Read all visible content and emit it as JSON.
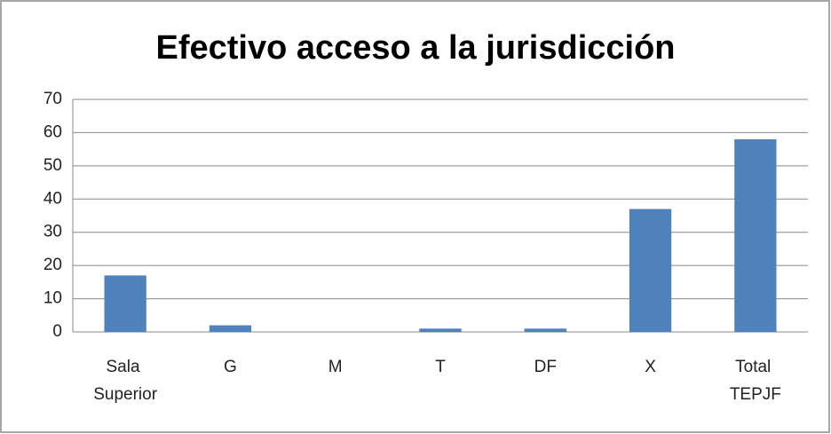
{
  "chart_data": {
    "type": "bar",
    "title": "Efectivo acceso a la jurisdicción",
    "categories": [
      "Sala Superior",
      "G",
      "M",
      "T",
      "DF",
      "X",
      "Total TEPJF"
    ],
    "values": [
      17,
      2,
      0,
      1,
      1,
      37,
      58
    ],
    "color": "#4f81bd",
    "ylim": [
      0,
      70
    ],
    "yticks": [
      0,
      10,
      20,
      30,
      40,
      50,
      60,
      70
    ],
    "grid": true
  }
}
